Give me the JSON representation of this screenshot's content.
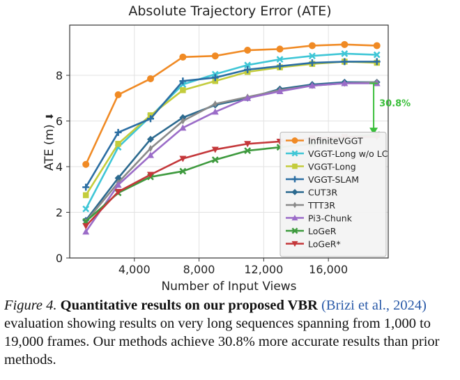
{
  "chart_data": {
    "type": "line",
    "title": "Absolute Trajectory Error (ATE)",
    "xlabel": "Number of Input Views",
    "ylabel": "ATE (m)",
    "ylabel_arrow": "⬇",
    "xlim": [
      0,
      19700
    ],
    "ylim": [
      0,
      10.2
    ],
    "xticks": [
      4000,
      8000,
      12000,
      16000
    ],
    "xtick_labels": [
      "4,000",
      "8,000",
      "12,000",
      "16,000"
    ],
    "yticks": [
      0,
      2,
      4,
      6,
      8
    ],
    "ytick_labels": [
      "0",
      "2",
      "4",
      "6",
      "8"
    ],
    "grid": true,
    "legend_position": "lower-right",
    "annotation": {
      "text": "30.8%",
      "color": "#3bbf3b",
      "x": 18800,
      "y_from": 7.65,
      "y_to": 5.4
    },
    "series": [
      {
        "name": "InfiniteVGGT",
        "color": "#f08a24",
        "marker": "circle",
        "x": [
          1000,
          3000,
          5000,
          7000,
          9000,
          11000,
          13000,
          15000,
          17000,
          19000
        ],
        "y": [
          4.1,
          7.15,
          7.85,
          8.8,
          8.85,
          9.1,
          9.15,
          9.3,
          9.35,
          9.3
        ]
      },
      {
        "name": "VGGT-Long w/o LC",
        "color": "#3fc6d6",
        "marker": "x",
        "x": [
          1000,
          3000,
          5000,
          7000,
          9000,
          11000,
          13000,
          15000,
          17000,
          19000
        ],
        "y": [
          2.15,
          4.85,
          6.2,
          7.6,
          8.05,
          8.45,
          8.7,
          8.85,
          8.95,
          8.9
        ]
      },
      {
        "name": "VGGT-Long",
        "color": "#c3cc3c",
        "marker": "square",
        "x": [
          1000,
          3000,
          5000,
          7000,
          9000,
          11000,
          13000,
          15000,
          17000,
          19000
        ],
        "y": [
          2.75,
          5.0,
          6.25,
          7.35,
          7.75,
          8.15,
          8.35,
          8.5,
          8.6,
          8.55
        ]
      },
      {
        "name": "VGGT-SLAM",
        "color": "#2b6ea3",
        "marker": "plus",
        "x": [
          1000,
          3000,
          5000,
          7000,
          9000,
          11000,
          13000,
          15000,
          17000,
          19000
        ],
        "y": [
          3.1,
          5.5,
          6.1,
          7.75,
          7.9,
          8.25,
          8.4,
          8.55,
          8.6,
          8.6
        ]
      },
      {
        "name": "CUT3R",
        "color": "#2c6a8f",
        "marker": "diamond",
        "x": [
          1000,
          3000,
          5000,
          7000,
          9000,
          11000,
          13000,
          15000,
          17000,
          19000
        ],
        "y": [
          1.65,
          3.5,
          5.2,
          6.15,
          6.7,
          7.0,
          7.4,
          7.6,
          7.7,
          7.7
        ]
      },
      {
        "name": "TTT3R",
        "color": "#8a8a8a",
        "marker": "thin_diamond",
        "x": [
          1000,
          3000,
          5000,
          7000,
          9000,
          11000,
          13000,
          15000,
          17000,
          19000
        ],
        "y": [
          1.6,
          3.3,
          4.8,
          6.0,
          6.75,
          7.05,
          7.35,
          7.55,
          7.65,
          7.7
        ]
      },
      {
        "name": "Pi3-Chunk",
        "color": "#9b6cc8",
        "marker": "triangle_up",
        "x": [
          1000,
          3000,
          5000,
          7000,
          9000,
          11000,
          13000,
          15000,
          17000,
          19000
        ],
        "y": [
          1.15,
          3.2,
          4.5,
          5.7,
          6.4,
          7.0,
          7.3,
          7.55,
          7.65,
          7.65
        ]
      },
      {
        "name": "LoGeR",
        "color": "#3e9a3e",
        "marker": "x",
        "x": [
          1000,
          3000,
          5000,
          7000,
          9000,
          11000,
          13000,
          15000,
          17000,
          19000
        ],
        "y": [
          1.6,
          2.85,
          3.55,
          3.8,
          4.3,
          4.7,
          4.85,
          5.0,
          5.3,
          5.4
        ]
      },
      {
        "name": "LoGeR*",
        "color": "#c4373a",
        "marker": "triangle_down",
        "x": [
          1000,
          3000,
          5000,
          7000,
          9000,
          11000,
          13000,
          15000,
          17000,
          19000
        ],
        "y": [
          1.4,
          2.9,
          3.65,
          4.35,
          4.75,
          5.0,
          5.1,
          5.25,
          5.3,
          5.3
        ]
      }
    ]
  },
  "caption": {
    "label": "Figure 4.",
    "bold": "Quantitative results on our proposed VBR",
    "cite": "(Brizi et al., 2024)",
    "rest": "evaluation showing results on very long sequences spanning from 1,000 to 19,000 frames. Our methods achieve 30.8% more accurate results than prior methods."
  }
}
